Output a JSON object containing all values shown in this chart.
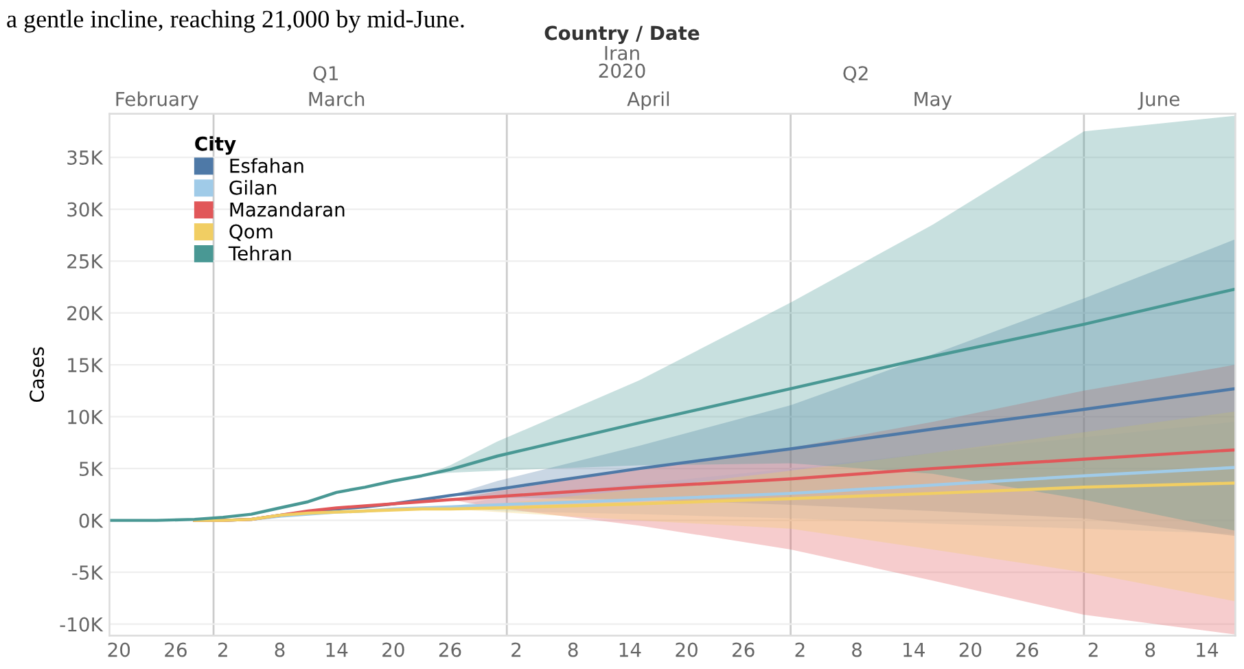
{
  "chart_data": {
    "type": "line",
    "title": "Country / Date",
    "subtitle": "Iran\n2020",
    "ylabel": "Cases",
    "legend_title": "City",
    "annotations": [
      "a gentle incline, reaching 21,000 by mid-June.",
      "Q1",
      "Q2"
    ],
    "x": [
      "2020-02-19",
      "2020-02-24",
      "2020-02-28",
      "2020-03-02",
      "2020-03-05",
      "2020-03-08",
      "2020-03-11",
      "2020-03-14",
      "2020-03-17",
      "2020-03-20",
      "2020-03-23",
      "2020-03-26",
      "2020-03-31",
      "2020-04-15",
      "2020-05-01",
      "2020-05-16",
      "2020-06-01",
      "2020-06-17"
    ],
    "series": [
      {
        "name": "Esfahan",
        "color": "#4e79a7",
        "values": [
          null,
          null,
          0,
          0,
          100,
          500,
          800,
          1100,
          1300,
          1600,
          2000,
          2400,
          3000,
          5000,
          6900,
          8800,
          10700,
          12700
        ],
        "upper": [
          null,
          null,
          null,
          null,
          null,
          null,
          null,
          null,
          null,
          null,
          null,
          2400,
          3800,
          7200,
          11100,
          16000,
          21400,
          27100
        ],
        "lower": [
          null,
          null,
          null,
          null,
          null,
          null,
          null,
          null,
          null,
          null,
          null,
          2400,
          2200,
          2000,
          1500,
          900,
          200,
          -1500
        ]
      },
      {
        "name": "Gilan",
        "color": "#a0cbe8",
        "values": [
          null,
          null,
          0,
          0,
          100,
          400,
          600,
          800,
          900,
          1100,
          1200,
          1300,
          1500,
          2000,
          2600,
          3400,
          4300,
          5100
        ],
        "upper": [
          null,
          null,
          null,
          null,
          null,
          null,
          null,
          null,
          null,
          null,
          null,
          1300,
          2200,
          3500,
          5000,
          6500,
          8000,
          9500
        ],
        "lower": [
          null,
          null,
          null,
          null,
          null,
          null,
          null,
          null,
          null,
          null,
          null,
          1300,
          900,
          600,
          200,
          -300,
          -800,
          -1300
        ]
      },
      {
        "name": "Mazandaran",
        "color": "#e15759",
        "values": [
          null,
          null,
          0,
          0,
          100,
          500,
          900,
          1200,
          1400,
          1600,
          1800,
          2000,
          2300,
          3200,
          4000,
          5000,
          5900,
          6800
        ],
        "upper": [
          null,
          null,
          null,
          null,
          null,
          null,
          null,
          null,
          null,
          null,
          null,
          2000,
          2800,
          5000,
          7000,
          9500,
          12500,
          15000
        ],
        "lower": [
          null,
          null,
          null,
          null,
          null,
          null,
          null,
          null,
          null,
          null,
          null,
          2000,
          1200,
          -500,
          -2800,
          -5800,
          -9100,
          -11000
        ]
      },
      {
        "name": "Qom",
        "color": "#f1ce63",
        "values": [
          null,
          null,
          0,
          0,
          100,
          500,
          700,
          800,
          900,
          1000,
          1100,
          1100,
          1200,
          1600,
          2100,
          2600,
          3200,
          3600
        ],
        "upper": [
          null,
          null,
          null,
          null,
          null,
          null,
          null,
          null,
          null,
          null,
          null,
          1100,
          1600,
          3000,
          4800,
          6500,
          8500,
          10500
        ],
        "lower": [
          null,
          null,
          null,
          null,
          null,
          null,
          null,
          null,
          null,
          null,
          null,
          1100,
          800,
          0,
          -800,
          -2800,
          -5000,
          -7800
        ]
      },
      {
        "name": "Tehran",
        "color": "#499894",
        "values": [
          0,
          0,
          100,
          300,
          600,
          1200,
          1800,
          2700,
          3200,
          3800,
          4300,
          4900,
          6200,
          9400,
          12700,
          15800,
          18900,
          22300
        ],
        "upper": [
          null,
          null,
          null,
          null,
          null,
          null,
          null,
          null,
          null,
          null,
          4300,
          5300,
          7600,
          13500,
          21000,
          28500,
          37500,
          39000
        ],
        "lower": [
          null,
          null,
          null,
          null,
          null,
          null,
          null,
          null,
          null,
          null,
          4300,
          4600,
          4800,
          5300,
          5500,
          4500,
          2000,
          -1000
        ]
      }
    ],
    "xlim": [
      "2020-02-19",
      "2020-06-17"
    ],
    "xticks": [
      {
        "value": "2020-02-20",
        "label": "20"
      },
      {
        "value": "2020-02-26",
        "label": "26"
      },
      {
        "value": "2020-03-02",
        "label": "2"
      },
      {
        "value": "2020-03-08",
        "label": "8"
      },
      {
        "value": "2020-03-14",
        "label": "14"
      },
      {
        "value": "2020-03-20",
        "label": "20"
      },
      {
        "value": "2020-03-26",
        "label": "26"
      },
      {
        "value": "2020-04-02",
        "label": "2"
      },
      {
        "value": "2020-04-08",
        "label": "8"
      },
      {
        "value": "2020-04-14",
        "label": "14"
      },
      {
        "value": "2020-04-20",
        "label": "20"
      },
      {
        "value": "2020-04-26",
        "label": "26"
      },
      {
        "value": "2020-05-02",
        "label": "2"
      },
      {
        "value": "2020-05-08",
        "label": "8"
      },
      {
        "value": "2020-05-14",
        "label": "14"
      },
      {
        "value": "2020-05-20",
        "label": "20"
      },
      {
        "value": "2020-05-26",
        "label": "26"
      },
      {
        "value": "2020-06-02",
        "label": "2"
      },
      {
        "value": "2020-06-08",
        "label": "8"
      },
      {
        "value": "2020-06-14",
        "label": "14"
      }
    ],
    "x2lim": [
      "2020-02-19",
      "2020-06-17"
    ],
    "x2ticks": [
      {
        "value": "2020-02-24",
        "label": "February"
      },
      {
        "value": "2020-03-14",
        "label": "March"
      },
      {
        "value": "2020-04-16",
        "label": "April"
      },
      {
        "value": "2020-05-16",
        "label": "May"
      },
      {
        "value": "2020-06-09",
        "label": "June"
      }
    ],
    "ref_lines": [
      {
        "axis": "x",
        "value": "2020-03-01",
        "color": "#cccccc"
      },
      {
        "axis": "x",
        "value": "2020-04-01",
        "color": "#cccccc"
      },
      {
        "axis": "x",
        "value": "2020-05-01",
        "color": "#cccccc"
      },
      {
        "axis": "x",
        "value": "2020-06-01",
        "color": "#cccccc"
      }
    ],
    "ylim": [
      -11100,
      39200
    ],
    "yticks": [
      {
        "value": -10000,
        "label": "-10K"
      },
      {
        "value": -5000,
        "label": "-5K"
      },
      {
        "value": 0,
        "label": "0K"
      },
      {
        "value": 5000,
        "label": "5K"
      },
      {
        "value": 10000,
        "label": "10K"
      },
      {
        "value": 15000,
        "label": "15K"
      },
      {
        "value": 20000,
        "label": "20K"
      },
      {
        "value": 25000,
        "label": "25K"
      },
      {
        "value": 30000,
        "label": "30K"
      },
      {
        "value": 35000,
        "label": "35K"
      }
    ],
    "grid": "y",
    "legend": "top left",
    "marker": "none",
    "line_style": "solid"
  }
}
